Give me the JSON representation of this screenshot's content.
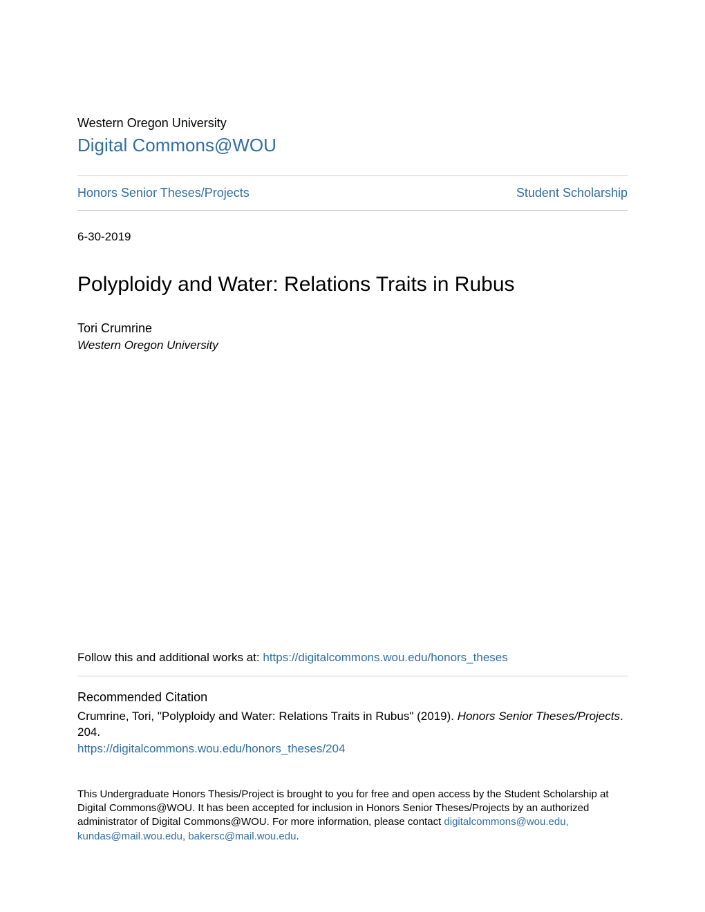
{
  "header": {
    "institution": "Western Oregon University",
    "repository_name": "Digital Commons@WOU"
  },
  "nav": {
    "left_link": "Honors Senior Theses/Projects",
    "right_link": "Student Scholarship"
  },
  "metadata": {
    "date": "6-30-2019",
    "title": "Polyploidy and Water: Relations Traits in Rubus",
    "author_name": "Tori Crumrine",
    "author_affiliation": "Western Oregon University"
  },
  "follow": {
    "prefix": "Follow this and additional works at: ",
    "url": "https://digitalcommons.wou.edu/honors_theses"
  },
  "citation": {
    "heading": "Recommended Citation",
    "text_part1": "Crumrine, Tori, \"Polyploidy and Water: Relations Traits in Rubus\" (2019). ",
    "text_italic": "Honors Senior Theses/Projects",
    "text_part2": ". 204.",
    "url": "https://digitalcommons.wou.edu/honors_theses/204"
  },
  "footer": {
    "text_part1": "This Undergraduate Honors Thesis/Project is brought to you for free and open access by the Student Scholarship at Digital Commons@WOU. It has been accepted for inclusion in Honors Senior Theses/Projects by an authorized administrator of Digital Commons@WOU. For more information, please contact ",
    "contact_link": "digitalcommons@wou.edu, kundas@mail.wou.edu, bakersc@mail.wou.edu",
    "text_part2": "."
  },
  "colors": {
    "link_color": "#2e6da4",
    "text_color": "#000000",
    "divider_color": "#cccccc",
    "background_color": "#ffffff"
  }
}
